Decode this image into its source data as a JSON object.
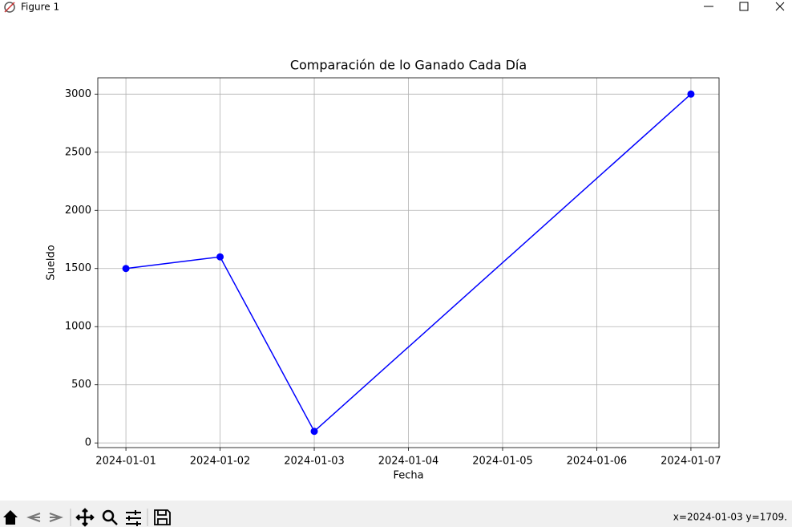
{
  "window": {
    "title": "Figure 1",
    "status": "x=2024-01-03 y=1709."
  },
  "chart_data": {
    "type": "line",
    "title": "Comparación de lo Ganado Cada Día",
    "x_label": "Fecha",
    "y_label": "Sueldo",
    "x": [
      "2024-01-01",
      "2024-01-02",
      "2024-01-03",
      "2024-01-07"
    ],
    "values": [
      1500,
      1600,
      100,
      3000
    ],
    "color": "#0000ff",
    "marker": "o",
    "xlim": [
      "2023-12-31T16:50",
      "2024-01-07T07:10"
    ],
    "xticks": [
      "2024-01-01",
      "2024-01-02",
      "2024-01-03",
      "2024-01-04",
      "2024-01-05",
      "2024-01-06",
      "2024-01-07"
    ],
    "ylim": [
      -40,
      3140
    ],
    "yticks": [
      0,
      500,
      1000,
      1500,
      2000,
      2500,
      3000
    ],
    "grid": true
  }
}
